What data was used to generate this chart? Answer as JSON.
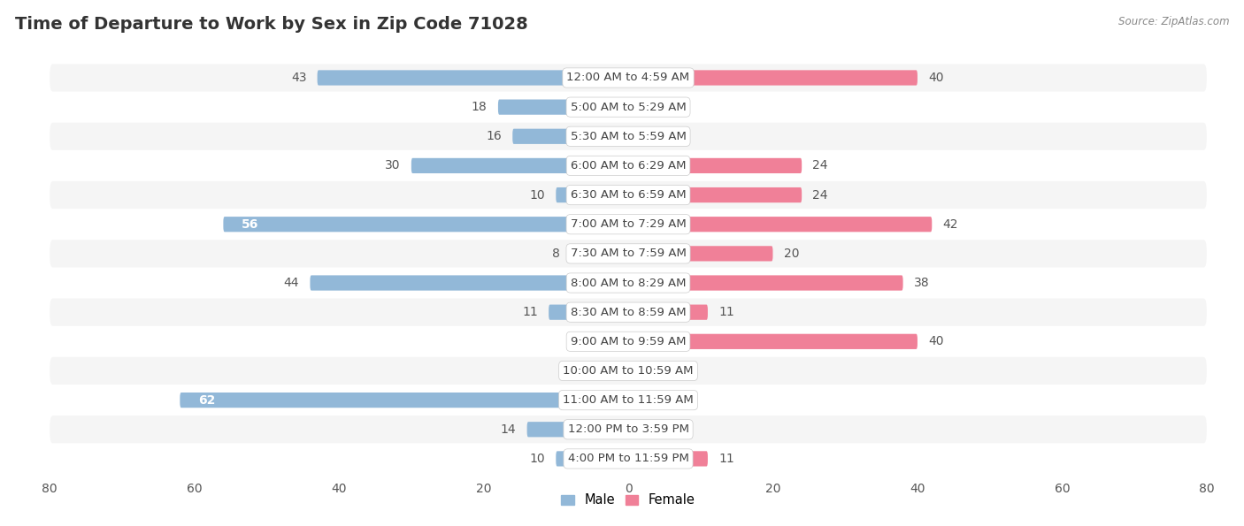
{
  "title": "Time of Departure to Work by Sex in Zip Code 71028",
  "source": "Source: ZipAtlas.com",
  "categories": [
    "12:00 AM to 4:59 AM",
    "5:00 AM to 5:29 AM",
    "5:30 AM to 5:59 AM",
    "6:00 AM to 6:29 AM",
    "6:30 AM to 6:59 AM",
    "7:00 AM to 7:29 AM",
    "7:30 AM to 7:59 AM",
    "8:00 AM to 8:29 AM",
    "8:30 AM to 8:59 AM",
    "9:00 AM to 9:59 AM",
    "10:00 AM to 10:59 AM",
    "11:00 AM to 11:59 AM",
    "12:00 PM to 3:59 PM",
    "4:00 PM to 11:59 PM"
  ],
  "male_values": [
    43,
    18,
    16,
    30,
    10,
    56,
    8,
    44,
    11,
    0,
    0,
    62,
    14,
    10
  ],
  "female_values": [
    40,
    0,
    6,
    24,
    24,
    42,
    20,
    38,
    11,
    40,
    0,
    0,
    6,
    11
  ],
  "male_color": "#92b8d8",
  "female_color": "#f08098",
  "male_color_dark": "#5a9ec8",
  "female_color_dark": "#e85080",
  "row_bg_light": "#f5f5f5",
  "row_bg_white": "#ffffff",
  "xlim": 80,
  "bar_height": 0.52,
  "title_fontsize": 14,
  "label_fontsize": 10,
  "cat_fontsize": 9.5,
  "legend_fontsize": 10.5,
  "value_label_threshold": 50
}
